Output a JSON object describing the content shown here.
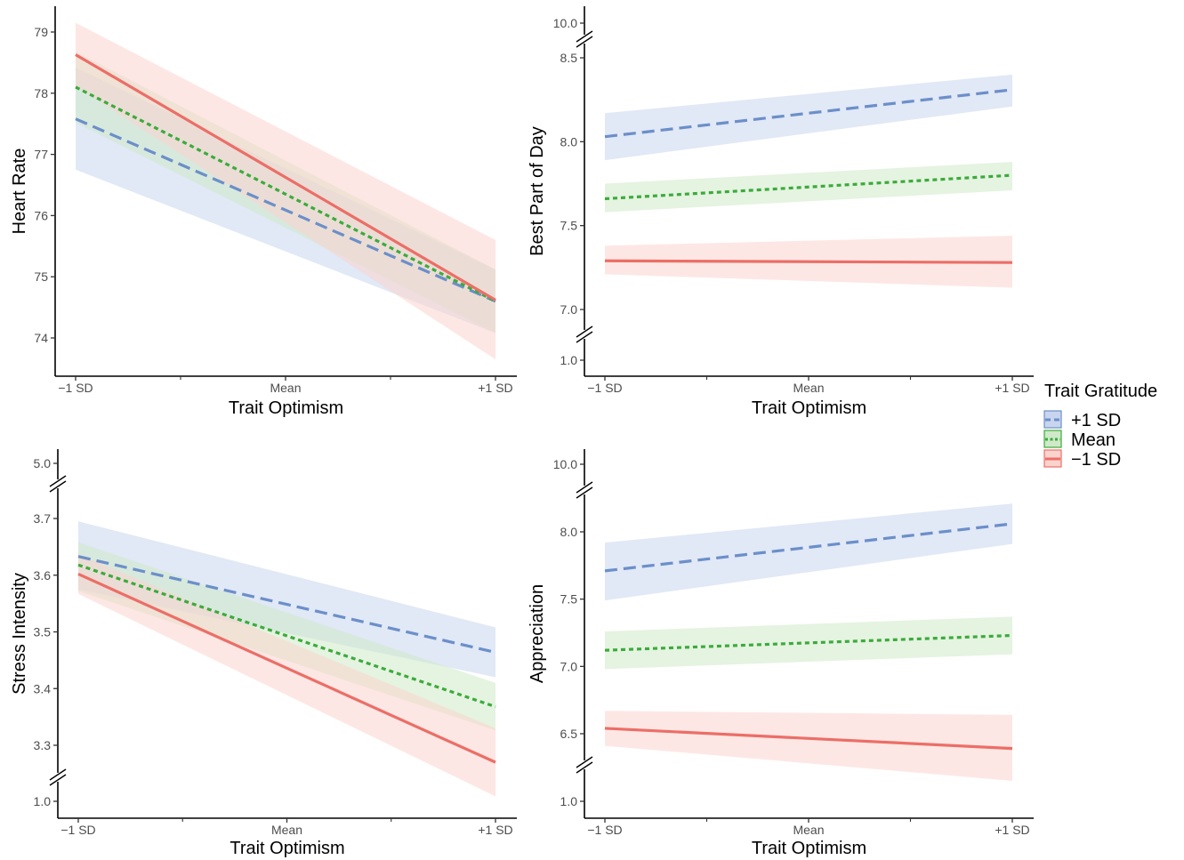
{
  "colors": {
    "plus1sd": "#6b8fc9",
    "mean": "#3bab3b",
    "minus1sd": "#ec6e67",
    "band_plus1sd": "#c9d5ef",
    "band_mean": "#cfe9c9",
    "band_minus1sd": "#fbd3cd"
  },
  "legend": {
    "title": "Trait Gratitude",
    "items": [
      {
        "key": "plus1sd",
        "label": "+1 SD",
        "style": "dashed"
      },
      {
        "key": "mean",
        "label": "Mean",
        "style": "dotted"
      },
      {
        "key": "minus1sd",
        "label": "−1 SD",
        "style": "solid"
      }
    ]
  },
  "chart_data": [
    {
      "type": "line",
      "panel": "top-left",
      "xlabel": "Trait Optimism",
      "ylabel": "Heart Rate",
      "x_ticks": [
        "−1 SD",
        "Mean",
        "+1 SD"
      ],
      "ylim": [
        73.6,
        79.5
      ],
      "y_ticks": [
        74,
        75,
        76,
        77,
        78,
        79
      ],
      "axis_break": false,
      "grid": false,
      "series": [
        {
          "key": "plus1sd",
          "y": [
            77.58,
            74.6
          ],
          "lower": [
            76.75,
            74.08
          ],
          "upper": [
            78.42,
            75.12
          ]
        },
        {
          "key": "mean",
          "y": [
            78.1,
            74.6
          ],
          "lower": [
            77.52,
            74.08
          ],
          "upper": [
            78.68,
            75.12
          ]
        },
        {
          "key": "minus1sd",
          "y": [
            78.63,
            74.62
          ],
          "lower": [
            78.12,
            73.65
          ],
          "upper": [
            79.15,
            75.6
          ]
        }
      ]
    },
    {
      "type": "line",
      "panel": "top-right",
      "xlabel": "Trait Optimism",
      "ylabel": "Best Part of Day",
      "x_ticks": [
        "−1 SD",
        "Mean",
        "+1 SD"
      ],
      "ylim": [
        6.85,
        8.6
      ],
      "y_ticks": [
        7.0,
        7.5,
        8.0,
        8.5
      ],
      "axis_break": true,
      "break_ticks": {
        "bottom": "1.0",
        "top": "10.0"
      },
      "grid": false,
      "series": [
        {
          "key": "plus1sd",
          "y": [
            8.03,
            8.31
          ],
          "lower": [
            7.89,
            8.21
          ],
          "upper": [
            8.17,
            8.4
          ]
        },
        {
          "key": "mean",
          "y": [
            7.66,
            7.8
          ],
          "lower": [
            7.58,
            7.71
          ],
          "upper": [
            7.75,
            7.88
          ]
        },
        {
          "key": "minus1sd",
          "y": [
            7.29,
            7.28
          ],
          "lower": [
            7.21,
            7.13
          ],
          "upper": [
            7.38,
            7.44
          ]
        }
      ]
    },
    {
      "type": "line",
      "panel": "bottom-left",
      "xlabel": "Trait Optimism",
      "ylabel": "Stress Intensity",
      "x_ticks": [
        "−1 SD",
        "Mean",
        "+1 SD"
      ],
      "ylim": [
        3.25,
        3.73
      ],
      "y_ticks": [
        3.3,
        3.4,
        3.5,
        3.6,
        3.7
      ],
      "axis_break": true,
      "break_ticks": {
        "bottom": "1.0",
        "top": "5.0"
      },
      "grid": false,
      "series": [
        {
          "key": "plus1sd",
          "y": [
            3.633,
            3.464
          ],
          "lower": [
            3.575,
            3.42
          ],
          "upper": [
            3.695,
            3.508
          ]
        },
        {
          "key": "mean",
          "y": [
            3.618,
            3.368
          ],
          "lower": [
            3.572,
            3.326
          ],
          "upper": [
            3.658,
            3.41
          ]
        },
        {
          "key": "minus1sd",
          "y": [
            3.602,
            3.27
          ],
          "lower": [
            3.567,
            3.21
          ],
          "upper": [
            3.637,
            3.33
          ]
        }
      ]
    },
    {
      "type": "line",
      "panel": "bottom-right",
      "xlabel": "Trait Optimism",
      "ylabel": "Appreciation",
      "x_ticks": [
        "−1 SD",
        "Mean",
        "+1 SD"
      ],
      "ylim": [
        6.3,
        8.3
      ],
      "y_ticks": [
        6.5,
        7.0,
        7.5,
        8.0
      ],
      "axis_break": true,
      "break_ticks": {
        "bottom": "1.0",
        "top": "10.0"
      },
      "grid": false,
      "series": [
        {
          "key": "plus1sd",
          "y": [
            7.71,
            8.06
          ],
          "lower": [
            7.49,
            7.91
          ],
          "upper": [
            7.92,
            8.21
          ]
        },
        {
          "key": "mean",
          "y": [
            7.12,
            7.23
          ],
          "lower": [
            6.98,
            7.09
          ],
          "upper": [
            7.26,
            7.37
          ]
        },
        {
          "key": "minus1sd",
          "y": [
            6.54,
            6.39
          ],
          "lower": [
            6.41,
            6.15
          ],
          "upper": [
            6.67,
            6.64
          ]
        }
      ]
    }
  ]
}
